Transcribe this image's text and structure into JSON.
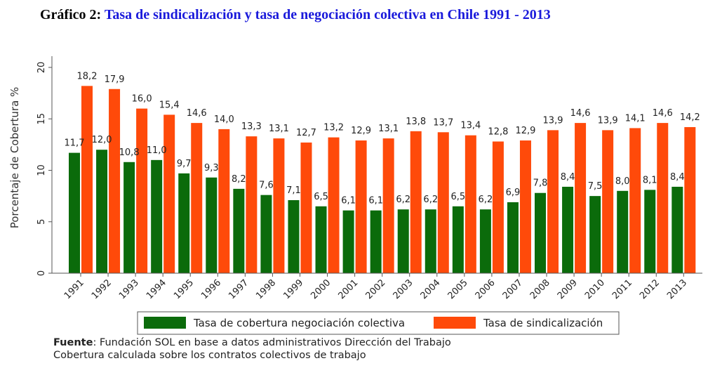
{
  "title": {
    "prefix": "Gráfico 2:",
    "text": "Tasa de sindicalización y tasa de negociación colectiva en Chile 1991 - 2013"
  },
  "colors": {
    "green": "#0b6b0b",
    "orange": "#ff4a0a",
    "axis": "#555555"
  },
  "chart_data": {
    "type": "bar",
    "ylabel": "Porcentaje de Cobertura %",
    "ylim": [
      0,
      20
    ],
    "yticks": [
      0,
      5,
      10,
      15,
      20
    ],
    "categories": [
      "1991",
      "1992",
      "1993",
      "1994",
      "1995",
      "1996",
      "1997",
      "1998",
      "1999",
      "2000",
      "2001",
      "2002",
      "2003",
      "2004",
      "2005",
      "2006",
      "2007",
      "2008",
      "2009",
      "2010",
      "2011",
      "2012",
      "2013"
    ],
    "series": [
      {
        "name": "Tasa de cobertura negociación colectiva",
        "color": "#0b6b0b",
        "values": [
          11.7,
          12.0,
          10.8,
          11.0,
          9.7,
          9.3,
          8.2,
          7.6,
          7.1,
          6.5,
          6.1,
          6.1,
          6.2,
          6.2,
          6.5,
          6.2,
          6.9,
          7.8,
          8.4,
          7.5,
          8.0,
          8.1,
          8.4
        ],
        "labels": [
          "11,7",
          "12,0",
          "10,8",
          "11,0",
          "9,7",
          "9,3",
          "8,2",
          "7,6",
          "7,1",
          "6,5",
          "6,1",
          "6,1",
          "6,2",
          "6,2",
          "6,5",
          "6,2",
          "6,9",
          "7,8",
          "8,4",
          "7,5",
          "8,0",
          "8,1",
          "8,4"
        ]
      },
      {
        "name": "Tasa de sindicalización",
        "color": "#ff4a0a",
        "values": [
          18.2,
          17.9,
          16.0,
          15.4,
          14.6,
          14.0,
          13.3,
          13.1,
          12.7,
          13.2,
          12.9,
          13.1,
          13.8,
          13.7,
          13.4,
          12.8,
          12.9,
          13.9,
          14.6,
          13.9,
          14.1,
          14.6,
          14.2
        ],
        "labels": [
          "18,2",
          "17,9",
          "16,0",
          "15,4",
          "14,6",
          "14,0",
          "13,3",
          "13,1",
          "12,7",
          "13,2",
          "12,9",
          "13,1",
          "13,8",
          "13,7",
          "13,4",
          "12,8",
          "12,9",
          "13,9",
          "14,6",
          "13,9",
          "14,1",
          "14,6",
          "14,2"
        ]
      }
    ],
    "legend": "bottom",
    "grid": false
  },
  "source": {
    "label": "Fuente",
    "line1": ": Fundación SOL en base a datos administrativos Dirección del Trabajo",
    "line2": "Cobertura calculada sobre los contratos colectivos de trabajo"
  }
}
